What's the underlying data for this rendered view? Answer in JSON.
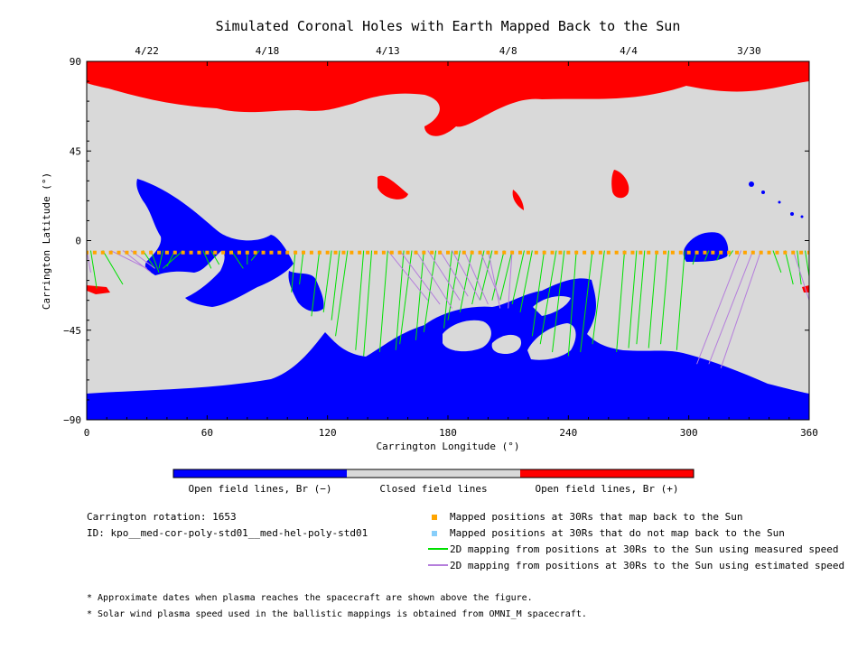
{
  "chart_data": {
    "type": "map",
    "title": "Simulated Coronal Holes with Earth Mapped Back to the Sun",
    "xlabel": "Carrington Longitude (°)",
    "ylabel": "Carrington Latitude (°)",
    "xlim": [
      0,
      360
    ],
    "ylim": [
      -90,
      90
    ],
    "x_ticks": [
      "0",
      "60",
      "120",
      "180",
      "240",
      "300",
      "360"
    ],
    "y_ticks": [
      "90",
      "45",
      "0",
      "−45",
      "−90"
    ],
    "top_axis_dates": [
      {
        "label": "4/22",
        "lon": 30
      },
      {
        "label": "4/18",
        "lon": 90
      },
      {
        "label": "4/13",
        "lon": 150
      },
      {
        "label": "4/8",
        "lon": 210
      },
      {
        "label": "4/4",
        "lon": 270
      },
      {
        "label": "3/30",
        "lon": 330
      }
    ],
    "colors": {
      "open_negative": "#0000ff",
      "closed": "#d9d9d9",
      "open_positive": "#ff0000",
      "mapped_point": "#ffa500",
      "unmapped_point": "#87cefa",
      "measured_line": "#00e000",
      "estimated_line": "#b57edc"
    },
    "colorbar_labels": [
      "Open field lines, Br (−)",
      "Closed field lines",
      "Open field lines, Br (+)"
    ],
    "mapped_positions_lat": -6,
    "mapped_positions_lon": [
      0,
      4,
      8,
      12,
      16,
      20,
      24,
      28,
      32,
      36,
      40,
      44,
      48,
      52,
      56,
      60,
      64,
      68,
      72,
      76,
      80,
      84,
      88,
      92,
      96,
      100,
      104,
      108,
      112,
      116,
      120,
      124,
      128,
      132,
      136,
      140,
      144,
      148,
      152,
      156,
      160,
      164,
      168,
      172,
      176,
      180,
      184,
      188,
      192,
      196,
      200,
      204,
      208,
      212,
      216,
      220,
      224,
      228,
      232,
      236,
      240,
      244,
      248,
      252,
      256,
      260,
      264,
      268,
      272,
      276,
      280,
      284,
      288,
      292,
      296,
      300,
      304,
      308,
      312,
      316,
      320,
      324,
      328,
      332,
      336,
      340,
      344,
      348,
      352,
      356,
      360
    ],
    "measured_mappings": [
      [
        2,
        -5,
        5,
        -24
      ],
      [
        8,
        -5,
        18,
        -22
      ],
      [
        28,
        -5,
        34,
        -14
      ],
      [
        32,
        -5,
        36,
        -16
      ],
      [
        38,
        -5,
        36,
        -14
      ],
      [
        44,
        -5,
        40,
        -13
      ],
      [
        48,
        -5,
        38,
        -14
      ],
      [
        58,
        -5,
        62,
        -14
      ],
      [
        62,
        -5,
        66,
        -12
      ],
      [
        72,
        -5,
        78,
        -14
      ],
      [
        80,
        -5,
        80,
        -12
      ],
      [
        86,
        -5,
        82,
        -10
      ],
      [
        104,
        -5,
        102,
        -26
      ],
      [
        108,
        -5,
        106,
        -22
      ],
      [
        116,
        -5,
        112,
        -38
      ],
      [
        122,
        -5,
        118,
        -36
      ],
      [
        126,
        -5,
        122,
        -40
      ],
      [
        130,
        -5,
        124,
        -48
      ],
      [
        138,
        -5,
        134,
        -55
      ],
      [
        142,
        -5,
        138,
        -58
      ],
      [
        150,
        -5,
        146,
        -56
      ],
      [
        158,
        -5,
        154,
        -55
      ],
      [
        162,
        -5,
        156,
        -52
      ],
      [
        168,
        -5,
        164,
        -50
      ],
      [
        174,
        -5,
        168,
        -46
      ],
      [
        182,
        -5,
        178,
        -44
      ],
      [
        186,
        -5,
        180,
        -40
      ],
      [
        192,
        -5,
        186,
        -36
      ],
      [
        198,
        -5,
        192,
        -32
      ],
      [
        202,
        -5,
        196,
        -30
      ],
      [
        208,
        -5,
        202,
        -30
      ],
      [
        212,
        -5,
        206,
        -30
      ],
      [
        218,
        -5,
        212,
        -32
      ],
      [
        222,
        -5,
        216,
        -36
      ],
      [
        228,
        -5,
        222,
        -48
      ],
      [
        234,
        -5,
        226,
        -52
      ],
      [
        238,
        -5,
        232,
        -56
      ],
      [
        244,
        -5,
        240,
        -58
      ],
      [
        252,
        -5,
        246,
        -56
      ],
      [
        258,
        -5,
        252,
        -52
      ],
      [
        268,
        -5,
        264,
        -56
      ],
      [
        274,
        -5,
        270,
        -54
      ],
      [
        278,
        -5,
        274,
        -52
      ],
      [
        284,
        -5,
        280,
        -54
      ],
      [
        290,
        -5,
        286,
        -52
      ],
      [
        298,
        -5,
        294,
        -55
      ],
      [
        304,
        -5,
        302,
        -12
      ],
      [
        310,
        -5,
        308,
        -10
      ],
      [
        316,
        -5,
        314,
        -10
      ],
      [
        322,
        -5,
        320,
        -8
      ],
      [
        342,
        -5,
        346,
        -16
      ],
      [
        348,
        -5,
        352,
        -22
      ],
      [
        354,
        -5,
        356,
        -22
      ],
      [
        358,
        -5,
        360,
        -18
      ]
    ],
    "estimated_mappings": [
      [
        0,
        -5,
        2,
        -16
      ],
      [
        12,
        -5,
        30,
        -14
      ],
      [
        18,
        -5,
        32,
        -16
      ],
      [
        22,
        -5,
        34,
        -14
      ],
      [
        150,
        -5,
        170,
        -30
      ],
      [
        156,
        -5,
        176,
        -32
      ],
      [
        164,
        -5,
        182,
        -34
      ],
      [
        170,
        -5,
        186,
        -30
      ],
      [
        176,
        -5,
        190,
        -28
      ],
      [
        182,
        -5,
        196,
        -30
      ],
      [
        188,
        -5,
        200,
        -32
      ],
      [
        196,
        -5,
        206,
        -30
      ],
      [
        200,
        -5,
        206,
        -34
      ],
      [
        212,
        -5,
        210,
        -34
      ],
      [
        326,
        -5,
        304,
        -62
      ],
      [
        332,
        -5,
        310,
        -62
      ],
      [
        336,
        -5,
        316,
        -64
      ],
      [
        352,
        -5,
        360,
        -30
      ]
    ]
  },
  "notes": {
    "carrington_rotation": "Carrington rotation: 1653",
    "id": "ID: kpo__med-cor-poly-std01__med-hel-poly-std01",
    "footnote1": "* Approximate dates when plasma reaches the spacecraft are shown above the figure.",
    "footnote2": "* Solar wind plasma speed used in the ballistic mappings is obtained from OMNI_M spacecraft."
  },
  "legend": {
    "mapped": "Mapped positions at 30Rs that map back to the Sun",
    "unmapped": "Mapped positions at 30Rs that do not map back to the Sun",
    "measured": "2D mapping from positions at 30Rs to the Sun using measured speed",
    "estimated": "2D mapping from positions at 30Rs to the Sun using estimated speed"
  }
}
